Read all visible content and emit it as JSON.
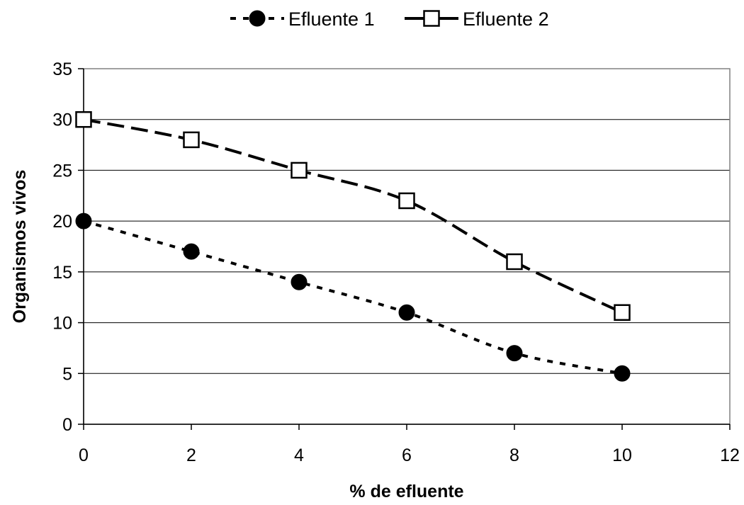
{
  "chart_data": {
    "type": "line",
    "title": "",
    "xlabel": "% de efluente",
    "ylabel": "Organismos vivos",
    "xlim": [
      0,
      12
    ],
    "ylim": [
      0,
      35
    ],
    "x_ticks": [
      0,
      2,
      4,
      6,
      8,
      10,
      12
    ],
    "y_ticks": [
      0,
      5,
      10,
      15,
      20,
      25,
      30,
      35
    ],
    "grid": "horizontal",
    "legend_position": "top",
    "series": [
      {
        "name": "Efluente 1",
        "x": [
          0,
          2,
          4,
          6,
          8,
          10
        ],
        "values": [
          20,
          17,
          14,
          11,
          7,
          5
        ],
        "marker": "filled-circle",
        "line_style": "dotted",
        "color": "#000000"
      },
      {
        "name": "Efluente 2",
        "x": [
          0,
          2,
          4,
          6,
          8,
          10
        ],
        "values": [
          30,
          28,
          25,
          22,
          16,
          11
        ],
        "marker": "open-square",
        "line_style": "dashed",
        "color": "#000000"
      }
    ]
  }
}
